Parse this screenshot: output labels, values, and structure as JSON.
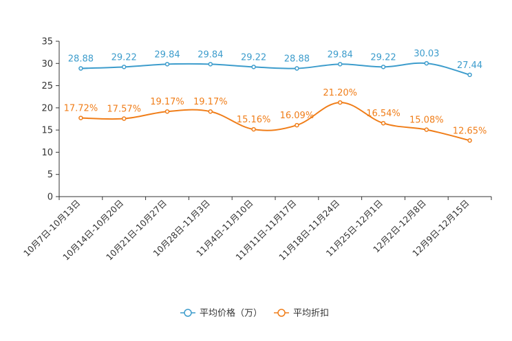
{
  "chart_data": {
    "type": "line",
    "title": "",
    "xlabel": "",
    "ylabel": "",
    "ylim": [
      0,
      35
    ],
    "yticks": [
      0,
      5,
      10,
      15,
      20,
      25,
      30,
      35
    ],
    "grid": false,
    "legend_position": "bottom-center",
    "categories": [
      "10月7日-10月13日",
      "10月14日-10月20日",
      "10月21日-10月27日",
      "10月28日-11月3日",
      "11月4日-11月10日",
      "11月11日-11月17日",
      "11月18日-11月24日",
      "11月25日-12月1日",
      "12月2日-12月8日",
      "12月9日-12月15日"
    ],
    "series": [
      {
        "name": "平均价格（万）",
        "color": "#3c9ccc",
        "values": [
          28.88,
          29.22,
          29.84,
          29.84,
          29.22,
          28.88,
          29.84,
          29.22,
          30.03,
          27.44
        ],
        "labels": [
          "28.88",
          "29.22",
          "29.84",
          "29.84",
          "29.22",
          "28.88",
          "29.84",
          "29.22",
          "30.03",
          "27.44"
        ]
      },
      {
        "name": "平均折扣",
        "color": "#f07d18",
        "values": [
          17.72,
          17.57,
          19.17,
          19.17,
          15.16,
          16.09,
          21.2,
          16.54,
          15.08,
          12.65
        ],
        "labels": [
          "17.72%",
          "17.57%",
          "19.17%",
          "19.17%",
          "15.16%",
          "16.09%",
          "21.20%",
          "16.54%",
          "15.08%",
          "12.65%"
        ]
      }
    ]
  }
}
